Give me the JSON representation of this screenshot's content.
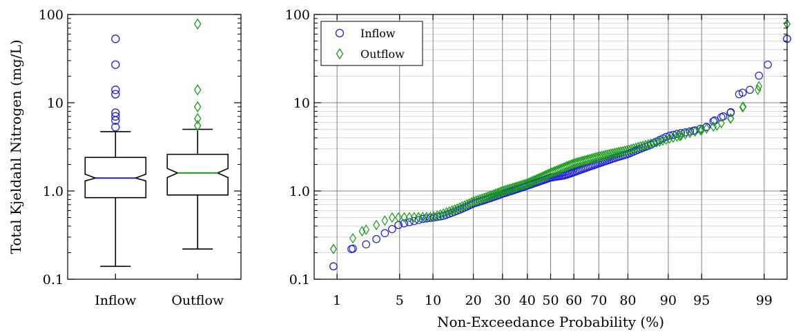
{
  "chart_data": [
    {
      "type": "boxplot",
      "ylabel": "Total Kjeldahl Nitrogen (mg/L)",
      "yscale": "log",
      "ylim": [
        0.1,
        100
      ],
      "ytick_labels": [
        "0.1",
        "1.0",
        "10",
        "100"
      ],
      "categories": [
        "Inflow",
        "Outflow"
      ],
      "boxes": [
        {
          "name": "Inflow",
          "whisker_low": 0.14,
          "q1": 0.84,
          "median": 1.4,
          "q3": 2.4,
          "whisker_high": 4.7,
          "notch_low": 1.3,
          "notch_high": 1.55,
          "median_color": "#1f1fd8",
          "flier_color": "#1f1fd8",
          "flier_marker": "circle",
          "fliers": [
            5.3,
            6.3,
            7.0,
            7.7,
            12.5,
            14.0,
            27.0,
            53.0
          ]
        },
        {
          "name": "Outflow",
          "whisker_low": 0.22,
          "q1": 0.9,
          "median": 1.6,
          "q3": 2.6,
          "whisker_high": 5.0,
          "notch_low": 1.42,
          "notch_high": 1.8,
          "median_color": "#1a9a1a",
          "flier_color": "#1a9a1a",
          "flier_marker": "diamond",
          "fliers": [
            5.5,
            6.6,
            9.0,
            14.0,
            78.0
          ]
        }
      ]
    },
    {
      "type": "scatter",
      "xlabel": "Non-Exceedance Probability (%)",
      "xscale": "probability",
      "xlim": [
        0.5,
        99.5
      ],
      "xtick_labels": [
        "1",
        "5",
        "10",
        "20",
        "30",
        "40",
        "50",
        "60",
        "70",
        "80",
        "90",
        "95",
        "99"
      ],
      "xtick_values": [
        1,
        5,
        10,
        20,
        30,
        40,
        50,
        60,
        70,
        80,
        90,
        95,
        99
      ],
      "yscale": "log",
      "ylim": [
        0.1,
        100
      ],
      "ytick_labels": [
        "0.1",
        "1.0",
        "10",
        "100"
      ],
      "grid": true,
      "legend": "top-left",
      "series": [
        {
          "name": "Inflow",
          "marker": "circle",
          "color": "#1f1fd8",
          "n": 150,
          "cdf_points": [
            [
              0.9,
              0.14
            ],
            [
              1.5,
              0.22
            ],
            [
              2.5,
              0.26
            ],
            [
              3.5,
              0.33
            ],
            [
              5,
              0.42
            ],
            [
              8,
              0.48
            ],
            [
              12,
              0.52
            ],
            [
              20,
              0.72
            ],
            [
              30,
              0.93
            ],
            [
              40,
              1.15
            ],
            [
              50,
              1.42
            ],
            [
              56,
              1.5
            ],
            [
              60,
              1.63
            ],
            [
              70,
              2.05
            ],
            [
              80,
              2.62
            ],
            [
              86,
              3.3
            ],
            [
              90,
              4.2
            ],
            [
              94,
              4.8
            ],
            [
              95.5,
              5.3
            ],
            [
              96.3,
              6.3
            ],
            [
              97,
              7.0
            ],
            [
              97.5,
              7.7
            ],
            [
              98,
              12.5
            ],
            [
              98.5,
              14.0
            ],
            [
              99.1,
              27.0
            ],
            [
              99.5,
              53.0
            ]
          ]
        },
        {
          "name": "Outflow",
          "marker": "diamond",
          "color": "#1a9a1a",
          "n": 150,
          "cdf_points": [
            [
              0.9,
              0.22
            ],
            [
              2.0,
              0.35
            ],
            [
              3.0,
              0.42
            ],
            [
              4.0,
              0.5
            ],
            [
              10,
              0.51
            ],
            [
              20,
              0.76
            ],
            [
              30,
              1.0
            ],
            [
              40,
              1.22
            ],
            [
              50,
              1.6
            ],
            [
              60,
              2.05
            ],
            [
              70,
              2.45
            ],
            [
              80,
              2.9
            ],
            [
              88,
              3.6
            ],
            [
              92,
              4.2
            ],
            [
              95,
              4.9
            ],
            [
              96.5,
              5.5
            ],
            [
              97.5,
              6.6
            ],
            [
              98.2,
              9.0
            ],
            [
              98.8,
              14.0
            ],
            [
              99.5,
              78.0
            ]
          ]
        }
      ]
    }
  ]
}
